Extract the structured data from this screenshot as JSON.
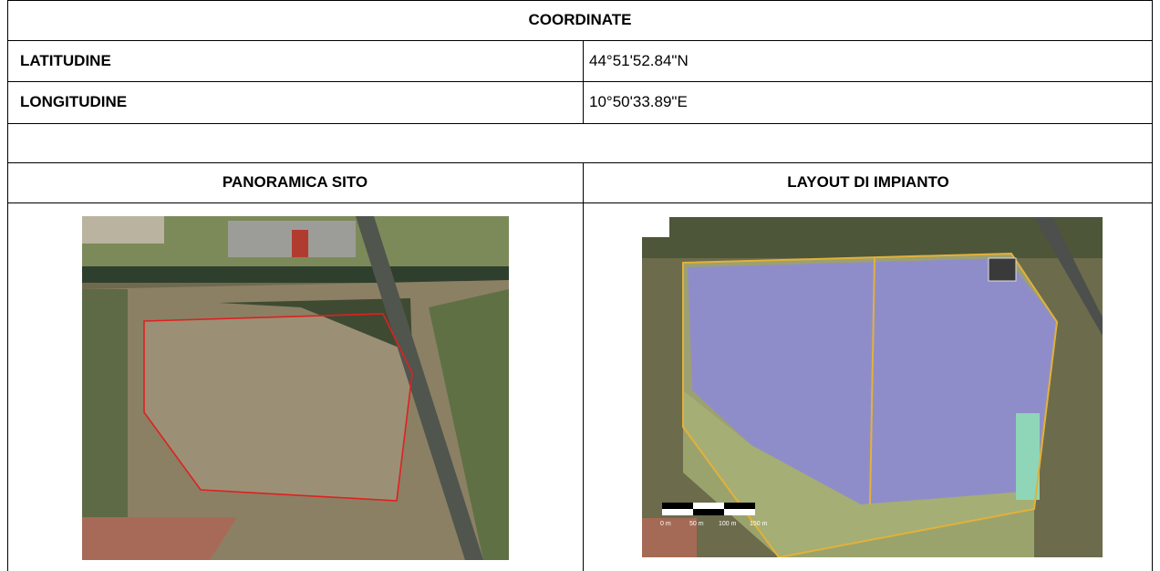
{
  "header": {
    "title": "COORDINATE"
  },
  "rows": [
    [
      "LATITUDINE",
      "44°51'52.84\"N"
    ],
    [
      "LONGITUDINE",
      "10°50'33.89\"E"
    ]
  ],
  "sections": [
    "PANORAMICA SITO",
    "LAYOUT DI IMPIANTO"
  ],
  "scale_labels": [
    "0 m",
    "50 m",
    "100 m",
    "150 m"
  ]
}
